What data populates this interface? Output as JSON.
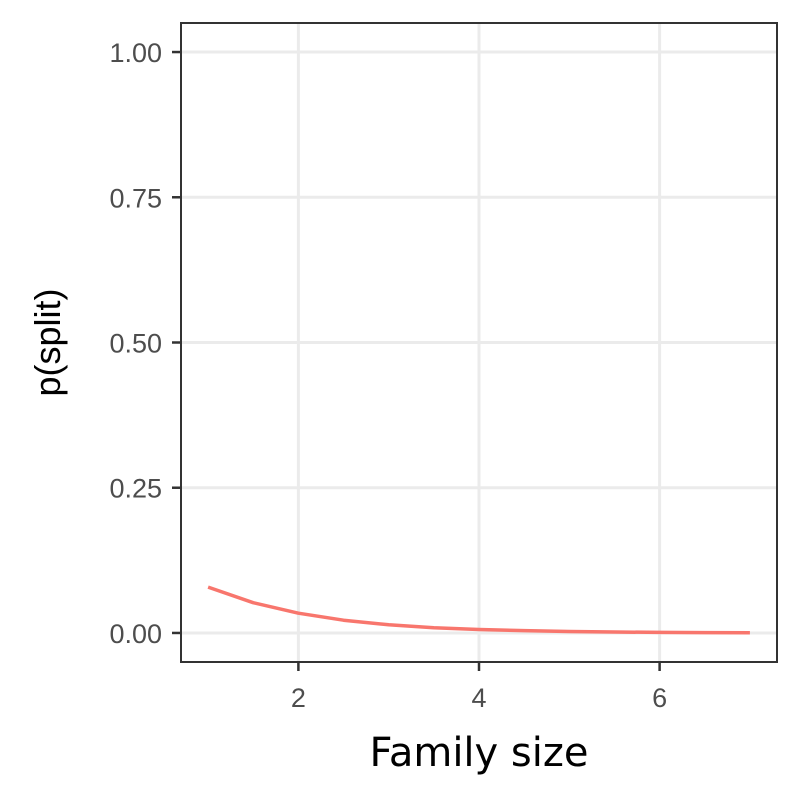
{
  "chart_data": {
    "type": "line",
    "xlabel": "Family size",
    "ylabel": "p(split)",
    "xlim": [
      0.7,
      7.3
    ],
    "ylim": [
      -0.05,
      1.05
    ],
    "x_ticks": [
      2,
      4,
      6
    ],
    "x_tick_labels": [
      "2",
      "4",
      "6"
    ],
    "y_ticks": [
      0,
      0.25,
      0.5,
      0.75,
      1
    ],
    "y_tick_labels": [
      "0.00",
      "0.25",
      "0.50",
      "0.75",
      "1.00"
    ],
    "grid": true,
    "series": [
      {
        "color": "#f8766d",
        "x": [
          1,
          1.5,
          2,
          2.5,
          3,
          3.5,
          4,
          4.5,
          5,
          5.5,
          6,
          6.5,
          7
        ],
        "y": [
          0.079,
          0.052,
          0.034,
          0.022,
          0.014,
          0.009,
          0.006,
          0.004,
          0.0025,
          0.0016,
          0.001,
          0.0006,
          0.0004
        ]
      }
    ]
  }
}
